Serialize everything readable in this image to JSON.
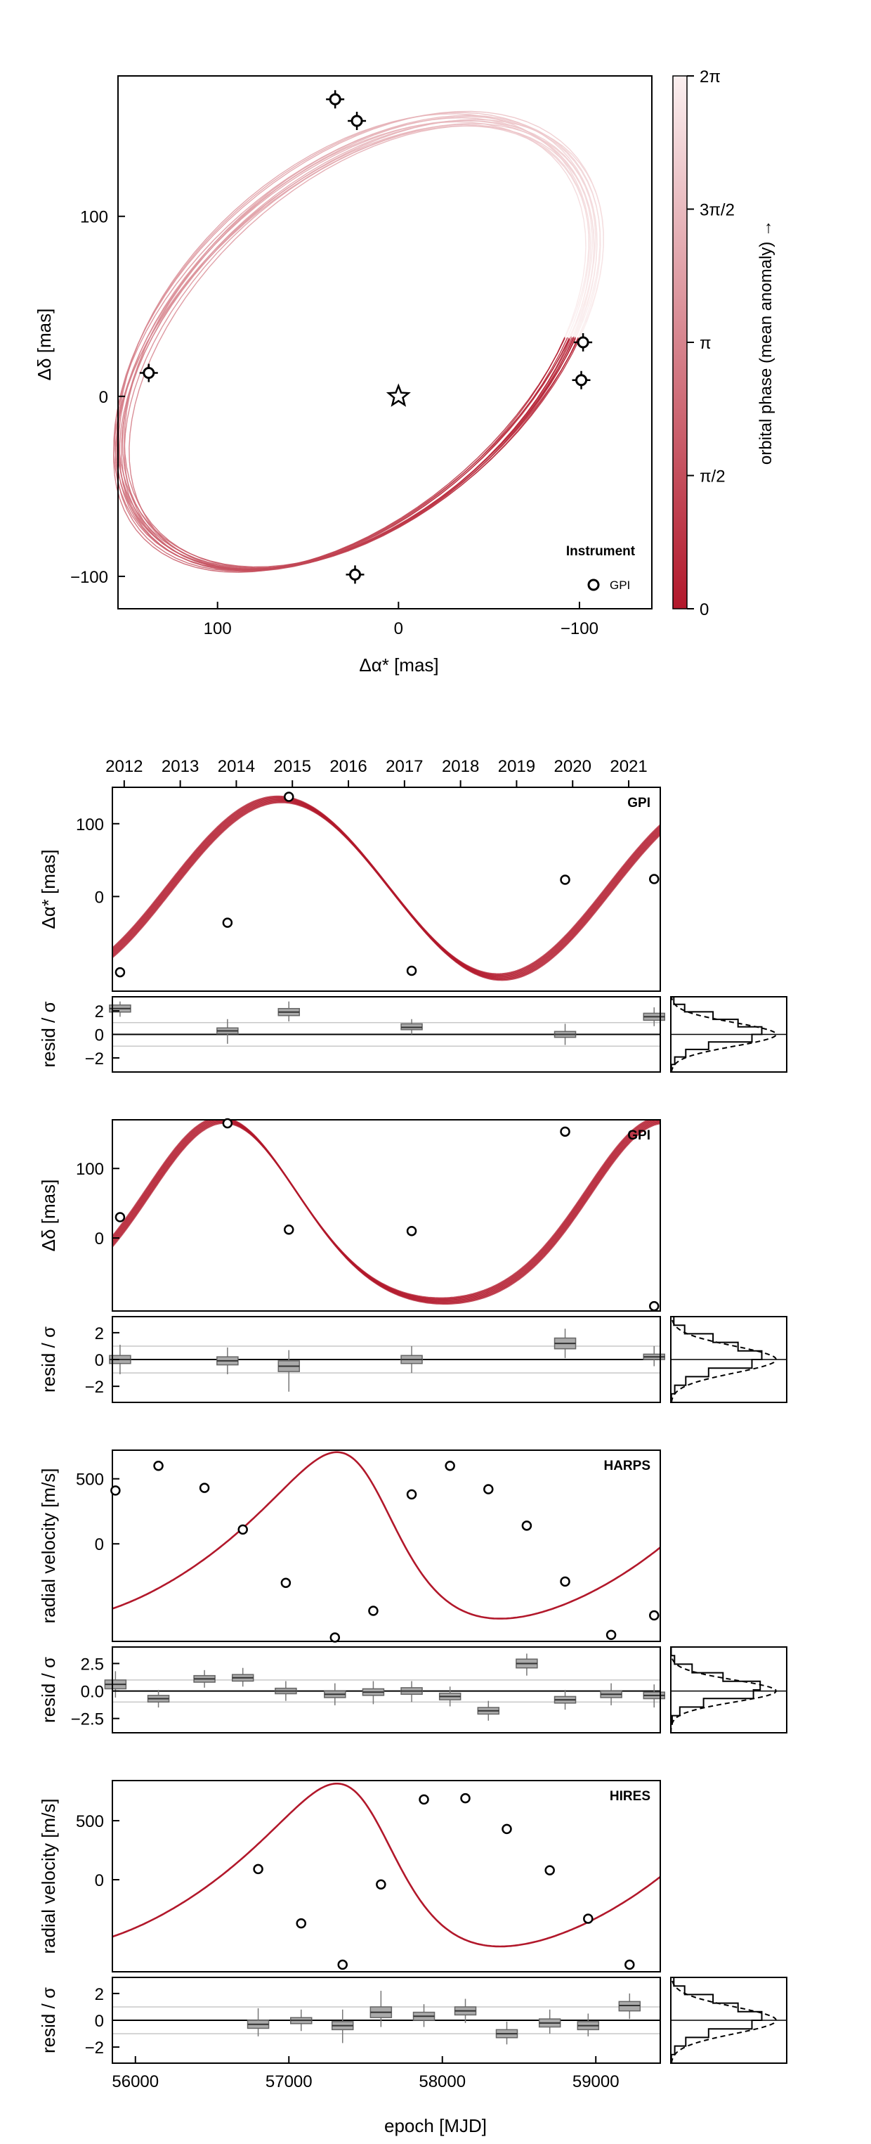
{
  "orbit_panel": {
    "xlabel": "Δα* [mas]",
    "ylabel": "Δδ [mas]",
    "xticks": [
      100,
      0,
      -100
    ],
    "yticks": [
      -100,
      0,
      100
    ],
    "xlim": [
      155,
      -140
    ],
    "ylim": [
      -118,
      178
    ],
    "legend_title": "Instrument",
    "legend_entry": "GPI",
    "colorbar_label": "orbital phase (mean anomaly) →",
    "colorbar_ticks": [
      "0",
      "π/2",
      "π",
      "3π/2",
      "2π"
    ],
    "colors": {
      "dark": "#b2182b",
      "light": "#fbf0f0"
    }
  },
  "top_axis": {
    "years": [
      "2012",
      "2013",
      "2014",
      "2015",
      "2016",
      "2017",
      "2018",
      "2019",
      "2020",
      "2021"
    ]
  },
  "bottom_axis": {
    "xlabel": "epoch [MJD]",
    "xticks": [
      56000,
      57000,
      58000,
      59000
    ],
    "xlim": [
      55850,
      59420
    ]
  },
  "panels": [
    {
      "id": "ra",
      "instrument": "GPI",
      "ylabel": "Δα* [mas]",
      "ylim": [
        -130,
        150
      ],
      "yticks": [
        0,
        100
      ],
      "resid_ylabel": "resid / σ",
      "resid_ylim": [
        -3.2,
        3.2
      ],
      "resid_yticks": [
        "2",
        "0",
        "−2"
      ],
      "resid_ytick_values": [
        2,
        0,
        -2
      ]
    },
    {
      "id": "dec",
      "instrument": "GPI",
      "ylabel": "Δδ [mas]",
      "ylim": [
        -105,
        170
      ],
      "yticks": [
        0,
        100
      ],
      "resid_ylabel": "resid / σ",
      "resid_ylim": [
        -3.2,
        3.2
      ],
      "resid_yticks": [
        "2",
        "0",
        "−2"
      ],
      "resid_ytick_values": [
        2,
        0,
        -2
      ]
    },
    {
      "id": "harps",
      "instrument": "HARPS",
      "ylabel": "radial velocity [m/s]",
      "ylim": [
        -750,
        720
      ],
      "yticks": [
        0,
        500
      ],
      "resid_ylabel": "resid / σ",
      "resid_ylim": [
        -3.8,
        4.0
      ],
      "resid_yticks": [
        "2.5",
        "0.0",
        "−2.5"
      ],
      "resid_ytick_values": [
        2.5,
        0,
        -2.5
      ]
    },
    {
      "id": "hires",
      "instrument": "HIRES",
      "ylabel": "radial velocity [m/s]",
      "ylim": [
        -780,
        840
      ],
      "yticks": [
        0,
        500
      ],
      "resid_ylabel": "resid / σ",
      "resid_ylim": [
        -3.2,
        3.2
      ],
      "resid_yticks": [
        "2",
        "0",
        "−2"
      ],
      "resid_ytick_values": [
        2,
        0,
        -2
      ]
    }
  ],
  "chart_data": [
    {
      "type": "scatter",
      "title": "",
      "xlabel": "Δα* [mas]",
      "ylabel": "Δδ [mas]",
      "series": [
        {
          "name": "GPI",
          "points": [
            [
              35,
              165
            ],
            [
              23,
              153
            ],
            [
              -102,
              30
            ],
            [
              -101,
              9
            ],
            [
              138,
              13
            ],
            [
              24,
              -99
            ]
          ]
        }
      ]
    },
    {
      "type": "line",
      "ylabel": "Δα* [mas]",
      "points": [
        [
          55900,
          -104
        ],
        [
          56600,
          -36
        ],
        [
          57000,
          137
        ],
        [
          57800,
          -102
        ],
        [
          58800,
          23
        ],
        [
          59380,
          24
        ]
      ],
      "resid_box": [
        {
          "x": 55900,
          "median": 2.2,
          "q1": 1.9,
          "q3": 2.5,
          "min": 1.5,
          "max": 2.8
        },
        {
          "x": 56600,
          "median": 0.3,
          "q1": 0.05,
          "q3": 0.55,
          "min": -0.8,
          "max": 1.3
        },
        {
          "x": 57000,
          "median": 1.9,
          "q1": 1.6,
          "q3": 2.2,
          "min": 1.1,
          "max": 2.8
        },
        {
          "x": 57800,
          "median": 0.6,
          "q1": 0.4,
          "q3": 0.9,
          "min": 0.0,
          "max": 1.3
        },
        {
          "x": 58800,
          "median": 0.0,
          "q1": -0.25,
          "q3": 0.25,
          "min": -0.9,
          "max": 0.9
        },
        {
          "x": 59380,
          "median": 1.5,
          "q1": 1.2,
          "q3": 1.8,
          "min": 0.7,
          "max": 2.3
        }
      ]
    },
    {
      "type": "line",
      "ylabel": "Δδ [mas]",
      "points": [
        [
          55900,
          30
        ],
        [
          56600,
          165
        ],
        [
          57000,
          12
        ],
        [
          57800,
          10
        ],
        [
          58800,
          153
        ],
        [
          59380,
          -98
        ]
      ],
      "resid_box": [
        {
          "x": 55900,
          "median": 0.0,
          "q1": -0.3,
          "q3": 0.3,
          "min": -1.1,
          "max": 1.1
        },
        {
          "x": 56600,
          "median": -0.1,
          "q1": -0.4,
          "q3": 0.2,
          "min": -1.1,
          "max": 0.9
        },
        {
          "x": 57000,
          "median": -0.5,
          "q1": -0.9,
          "q3": -0.1,
          "min": -2.4,
          "max": 0.7
        },
        {
          "x": 57800,
          "median": 0.0,
          "q1": -0.3,
          "q3": 0.3,
          "min": -1.0,
          "max": 1.0
        },
        {
          "x": 58800,
          "median": 1.2,
          "q1": 0.8,
          "q3": 1.6,
          "min": 0.1,
          "max": 2.3
        },
        {
          "x": 59380,
          "median": 0.2,
          "q1": 0.0,
          "q3": 0.4,
          "min": -0.5,
          "max": 1.0
        }
      ]
    },
    {
      "type": "line",
      "ylabel": "radial velocity [m/s]",
      "instrument": "HARPS",
      "points": [
        [
          55870,
          410
        ],
        [
          56150,
          600
        ],
        [
          56450,
          430
        ],
        [
          56700,
          110
        ],
        [
          56980,
          -300
        ],
        [
          57300,
          -720
        ],
        [
          57550,
          -515
        ],
        [
          57800,
          380
        ],
        [
          58050,
          600
        ],
        [
          58300,
          420
        ],
        [
          58550,
          140
        ],
        [
          58800,
          -290
        ],
        [
          59100,
          -700
        ],
        [
          59380,
          -550
        ]
      ],
      "resid_box": [
        {
          "x": 55870,
          "median": 0.6,
          "q1": 0.2,
          "q3": 1.0,
          "min": -0.6,
          "max": 1.8
        },
        {
          "x": 56150,
          "median": -0.7,
          "q1": -1.0,
          "q3": -0.4,
          "min": -1.5,
          "max": 0.1
        },
        {
          "x": 56450,
          "median": 1.1,
          "q1": 0.8,
          "q3": 1.4,
          "min": 0.3,
          "max": 1.9
        },
        {
          "x": 56700,
          "median": 1.2,
          "q1": 0.9,
          "q3": 1.5,
          "min": 0.4,
          "max": 2.1
        },
        {
          "x": 56980,
          "median": 0.0,
          "q1": -0.25,
          "q3": 0.25,
          "min": -0.9,
          "max": 0.9
        },
        {
          "x": 57300,
          "median": -0.3,
          "q1": -0.6,
          "q3": 0.0,
          "min": -1.3,
          "max": 0.7
        },
        {
          "x": 57550,
          "median": -0.1,
          "q1": -0.4,
          "q3": 0.2,
          "min": -1.2,
          "max": 0.9
        },
        {
          "x": 57800,
          "median": 0.0,
          "q1": -0.3,
          "q3": 0.3,
          "min": -1.0,
          "max": 0.9
        },
        {
          "x": 58050,
          "median": -0.5,
          "q1": -0.8,
          "q3": -0.2,
          "min": -1.4,
          "max": 0.4
        },
        {
          "x": 58300,
          "median": -1.8,
          "q1": -2.1,
          "q3": -1.5,
          "min": -2.7,
          "max": -0.9
        },
        {
          "x": 58550,
          "median": 2.5,
          "q1": 2.1,
          "q3": 2.9,
          "min": 1.4,
          "max": 3.4
        },
        {
          "x": 58800,
          "median": -0.8,
          "q1": -1.1,
          "q3": -0.5,
          "min": -1.7,
          "max": 0.1
        },
        {
          "x": 59100,
          "median": -0.3,
          "q1": -0.6,
          "q3": 0.0,
          "min": -1.3,
          "max": 0.7
        },
        {
          "x": 59380,
          "median": -0.4,
          "q1": -0.7,
          "q3": -0.1,
          "min": -1.5,
          "max": 0.6
        }
      ]
    },
    {
      "type": "line",
      "ylabel": "radial velocity [m/s]",
      "instrument": "HIRES",
      "points": [
        [
          56800,
          90
        ],
        [
          57080,
          -370
        ],
        [
          57350,
          -720
        ],
        [
          57600,
          -40
        ],
        [
          57880,
          680
        ],
        [
          58150,
          690
        ],
        [
          58420,
          430
        ],
        [
          58700,
          80
        ],
        [
          58950,
          -330
        ],
        [
          59220,
          -720
        ]
      ],
      "resid_box": [
        {
          "x": 56800,
          "median": -0.3,
          "q1": -0.6,
          "q3": 0.0,
          "min": -1.2,
          "max": 0.9
        },
        {
          "x": 57080,
          "median": 0.0,
          "q1": -0.25,
          "q3": 0.2,
          "min": -0.8,
          "max": 0.8
        },
        {
          "x": 57350,
          "median": -0.4,
          "q1": -0.7,
          "q3": -0.1,
          "min": -1.7,
          "max": 0.8
        },
        {
          "x": 57600,
          "median": 0.6,
          "q1": 0.2,
          "q3": 1.0,
          "min": -0.5,
          "max": 2.2
        },
        {
          "x": 57880,
          "median": 0.3,
          "q1": 0.0,
          "q3": 0.6,
          "min": -0.5,
          "max": 1.2
        },
        {
          "x": 58150,
          "median": 0.7,
          "q1": 0.4,
          "q3": 1.0,
          "min": -0.2,
          "max": 1.6
        },
        {
          "x": 58420,
          "median": -1.0,
          "q1": -1.3,
          "q3": -0.7,
          "min": -1.8,
          "max": -0.1
        },
        {
          "x": 58700,
          "median": -0.2,
          "q1": -0.5,
          "q3": 0.1,
          "min": -1.0,
          "max": 0.8
        },
        {
          "x": 58950,
          "median": -0.4,
          "q1": -0.7,
          "q3": -0.1,
          "min": -1.2,
          "max": 0.5
        },
        {
          "x": 59220,
          "median": 1.1,
          "q1": 0.7,
          "q3": 1.4,
          "min": 0.1,
          "max": 2.0
        }
      ]
    }
  ]
}
